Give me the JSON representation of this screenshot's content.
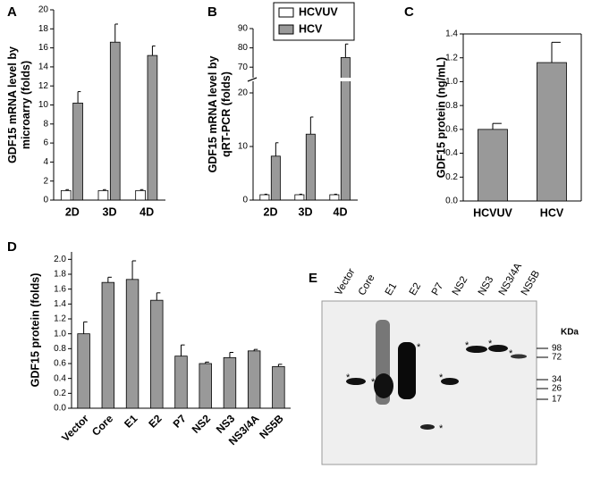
{
  "chart_data": [
    {
      "type": "bar",
      "label": "A",
      "ylabel": [
        "GDF15 mRNA level by",
        "microarry (folds)"
      ],
      "categories": [
        "2D",
        "3D",
        "4D"
      ],
      "series": [
        {
          "name": "HCVUV",
          "color": "#ffffff",
          "values": [
            1,
            1,
            1
          ],
          "errors": [
            0.1,
            0.1,
            0.1
          ]
        },
        {
          "name": "HCV",
          "color": "#999999",
          "values": [
            10.2,
            16.6,
            15.2
          ],
          "errors": [
            1.2,
            1.9,
            1.0
          ]
        }
      ],
      "ylim": [
        0,
        20
      ],
      "yticks": [
        0,
        2,
        4,
        6,
        8,
        10,
        12,
        14,
        16,
        18,
        20
      ]
    },
    {
      "type": "bar",
      "label": "B",
      "ylabel": [
        "GDF15 mRNA level by",
        "qRT-PCR (folds)"
      ],
      "categories": [
        "2D",
        "3D",
        "4D"
      ],
      "series": [
        {
          "name": "HCVUV",
          "color": "#ffffff",
          "values": [
            1,
            1,
            1
          ],
          "errors": [
            0.1,
            0.1,
            0.1
          ]
        },
        {
          "name": "HCV",
          "color": "#999999",
          "values": [
            8.2,
            12.3,
            75
          ],
          "errors": [
            2.5,
            3.2,
            7
          ]
        }
      ],
      "ylim": [
        0,
        90
      ],
      "ybreak": [
        22,
        65
      ],
      "yticks": [
        0,
        10,
        20,
        70,
        80,
        90
      ],
      "legend": "top"
    },
    {
      "type": "bar",
      "label": "C",
      "ylabel": [
        "GDF15 protein (ng/mL)"
      ],
      "categories": [
        "HCVUV",
        "HCV"
      ],
      "series": [
        {
          "color": "#999999",
          "values": [
            0.6,
            1.16
          ],
          "errors": [
            0.05,
            0.17
          ]
        }
      ],
      "ylim": [
        0,
        1.4
      ],
      "yticks": [
        {
          "value": 0,
          "label": "0.0"
        },
        {
          "value": 0.2,
          "label": "0.2"
        },
        {
          "value": 0.4,
          "label": "0.4"
        },
        {
          "value": 0.6,
          "label": "0.6"
        },
        {
          "value": 0.8,
          "label": "0.8"
        },
        {
          "value": 1,
          "label": "1.0"
        },
        {
          "value": 1.2,
          "label": "1.2"
        },
        {
          "value": 1.4,
          "label": "1.4"
        }
      ]
    },
    {
      "type": "bar",
      "label": "D",
      "ylabel": [
        "GDF15 protein (folds)"
      ],
      "categories": [
        "Vector",
        "Core",
        "E1",
        "E2",
        "P7",
        "NS2",
        "NS3",
        "NS3/4A",
        "NS5B"
      ],
      "series": [
        {
          "color": "#999999",
          "values": [
            1.0,
            1.69,
            1.73,
            1.45,
            0.7,
            0.6,
            0.68,
            0.77,
            0.56
          ],
          "errors": [
            0.16,
            0.07,
            0.25,
            0.1,
            0.15,
            0.02,
            0.07,
            0.02,
            0.03
          ]
        }
      ],
      "ylim": [
        0,
        2.1
      ],
      "yticks": [
        {
          "value": 0,
          "label": "0.0"
        },
        {
          "value": 0.2,
          "label": "0.2"
        },
        {
          "value": 0.4,
          "label": "0.4"
        },
        {
          "value": 0.6,
          "label": "0.6"
        },
        {
          "value": 0.8,
          "label": "0.8"
        },
        {
          "value": 1,
          "label": "1.0"
        },
        {
          "value": 1.2,
          "label": "1.2"
        },
        {
          "value": 1.4,
          "label": "1.4"
        },
        {
          "value": 1.6,
          "label": "1.6"
        },
        {
          "value": 1.8,
          "label": "1.8"
        },
        {
          "value": 2,
          "label": "2.0"
        }
      ],
      "rotate_labels": true
    }
  ],
  "blot": {
    "label": "E",
    "lanes": [
      "Vector",
      "Core",
      "E1",
      "E2",
      "P7",
      "NS2",
      "NS3",
      "NS3/4A",
      "NS5B"
    ],
    "unit": "KDa",
    "markers": [
      "98",
      "72",
      "34",
      "26",
      "17"
    ],
    "band_mark": "*"
  }
}
